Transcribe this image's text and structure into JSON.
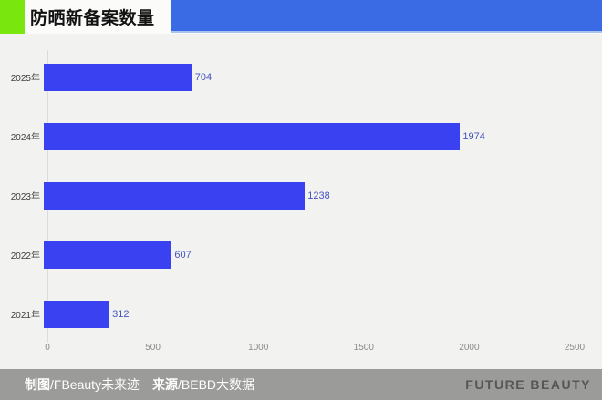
{
  "header": {
    "title": "防晒新备案数量",
    "accent_green": "#79e60e",
    "accent_blue": "#3a6be4"
  },
  "chart_data": {
    "type": "bar",
    "orientation": "horizontal",
    "title": "防晒新备案数量",
    "categories": [
      "2025年",
      "2024年",
      "2023年",
      "2022年",
      "2021年"
    ],
    "values": [
      704,
      1974,
      1238,
      607,
      312
    ],
    "xlabel": "",
    "ylabel": "",
    "xlim": [
      0,
      2500
    ],
    "xticks": [
      "0",
      "500",
      "1000",
      "1500",
      "2000",
      "2500"
    ],
    "xtick_values": [
      0,
      500,
      1000,
      1500,
      2000,
      2500
    ],
    "grid": false,
    "legend": "none",
    "bar_color": "#3a41f1",
    "value_label_color": "#4753c0"
  },
  "footer": {
    "credit_label": "制图",
    "credit_value": "/FBeauty未来迹",
    "source_label": "来源",
    "source_value": "/BEBD大数据",
    "brand": "FUTURE BEAUTY"
  }
}
